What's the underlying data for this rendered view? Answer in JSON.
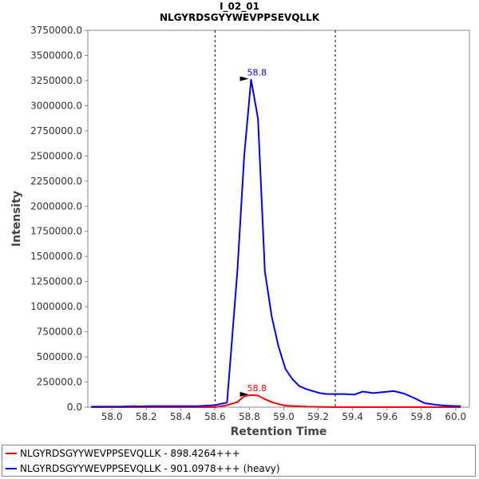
{
  "chart_data": {
    "type": "line",
    "title": "I_02_01",
    "subtitle": "NLGYRDSGYYWEVPPSEVQLLK",
    "xlabel": "Retention Time",
    "ylabel": "Intensity",
    "xlim": [
      57.86,
      60.08
    ],
    "ylim": [
      0,
      3750000
    ],
    "x_ticks": [
      "58.0",
      "58.2",
      "58.4",
      "58.6",
      "58.8",
      "59.0",
      "59.2",
      "59.4",
      "59.6",
      "59.8",
      "60.0"
    ],
    "y_ticks": [
      "0.0",
      "250000.0",
      "500000.0",
      "750000.0",
      "1000000.0",
      "1250000.0",
      "1500000.0",
      "1750000.0",
      "2000000.0",
      "2250000.0",
      "2500000.0",
      "2750000.0",
      "3000000.0",
      "3250000.0",
      "3500000.0",
      "3750000.0"
    ],
    "boundaries": [
      58.6,
      59.3
    ],
    "grid": false,
    "legend_position": "bottom",
    "series": [
      {
        "name": "NLGYRDSGYYWEVPPSEVQLLK - 898.4264+++",
        "color": "#ff0000",
        "peak_label": "58.8",
        "peak": [
          58.81,
          120000
        ],
        "points": [
          [
            57.88,
            0
          ],
          [
            57.92,
            0
          ],
          [
            57.96,
            0
          ],
          [
            58.0,
            0
          ],
          [
            58.04,
            0
          ],
          [
            58.08,
            0
          ],
          [
            58.12,
            0
          ],
          [
            58.16,
            0
          ],
          [
            58.2,
            0
          ],
          [
            58.24,
            0
          ],
          [
            58.28,
            0
          ],
          [
            58.32,
            0
          ],
          [
            58.36,
            0
          ],
          [
            58.4,
            0
          ],
          [
            58.44,
            0
          ],
          [
            58.48,
            0
          ],
          [
            58.52,
            0
          ],
          [
            58.56,
            0
          ],
          [
            58.6,
            0
          ],
          [
            58.66,
            15000
          ],
          [
            58.73,
            50000
          ],
          [
            58.77,
            110000
          ],
          [
            58.81,
            120000
          ],
          [
            58.85,
            115000
          ],
          [
            58.89,
            80000
          ],
          [
            58.93,
            50000
          ],
          [
            58.97,
            30000
          ],
          [
            59.01,
            15000
          ],
          [
            59.05,
            12000
          ],
          [
            59.1,
            8000
          ],
          [
            59.14,
            5000
          ],
          [
            59.2,
            3000
          ],
          [
            59.3,
            0
          ],
          [
            59.4,
            0
          ],
          [
            59.6,
            0
          ],
          [
            59.8,
            0
          ],
          [
            59.9,
            0
          ],
          [
            60.0,
            0
          ],
          [
            60.03,
            0
          ]
        ]
      },
      {
        "name": "NLGYRDSGYYWEVPPSEVQLLK - 901.0978+++ (heavy)",
        "color": "#0000ff",
        "peak_label": "58.8",
        "peak": [
          58.81,
          3260000
        ],
        "points": [
          [
            57.88,
            5000
          ],
          [
            57.95,
            5000
          ],
          [
            58.0,
            5000
          ],
          [
            58.05,
            5000
          ],
          [
            58.1,
            8000
          ],
          [
            58.13,
            10000
          ],
          [
            58.16,
            8000
          ],
          [
            58.22,
            10000
          ],
          [
            58.26,
            10000
          ],
          [
            58.3,
            10000
          ],
          [
            58.35,
            10000
          ],
          [
            58.4,
            10000
          ],
          [
            58.45,
            10000
          ],
          [
            58.5,
            10000
          ],
          [
            58.55,
            15000
          ],
          [
            58.6,
            20000
          ],
          [
            58.64,
            35000
          ],
          [
            58.67,
            45000
          ],
          [
            58.7,
            700000
          ],
          [
            58.73,
            1350000
          ],
          [
            58.77,
            2500000
          ],
          [
            58.81,
            3260000
          ],
          [
            58.85,
            2870000
          ],
          [
            58.89,
            1350000
          ],
          [
            58.93,
            900000
          ],
          [
            58.97,
            600000
          ],
          [
            59.01,
            380000
          ],
          [
            59.05,
            280000
          ],
          [
            59.09,
            210000
          ],
          [
            59.13,
            180000
          ],
          [
            59.17,
            160000
          ],
          [
            59.21,
            140000
          ],
          [
            59.25,
            130000
          ],
          [
            59.3,
            130000
          ],
          [
            59.35,
            130000
          ],
          [
            59.41,
            125000
          ],
          [
            59.46,
            155000
          ],
          [
            59.52,
            140000
          ],
          [
            59.58,
            150000
          ],
          [
            59.64,
            160000
          ],
          [
            59.7,
            135000
          ],
          [
            59.76,
            90000
          ],
          [
            59.82,
            40000
          ],
          [
            59.88,
            25000
          ],
          [
            59.94,
            15000
          ],
          [
            59.98,
            12000
          ],
          [
            60.03,
            10000
          ]
        ]
      }
    ]
  }
}
